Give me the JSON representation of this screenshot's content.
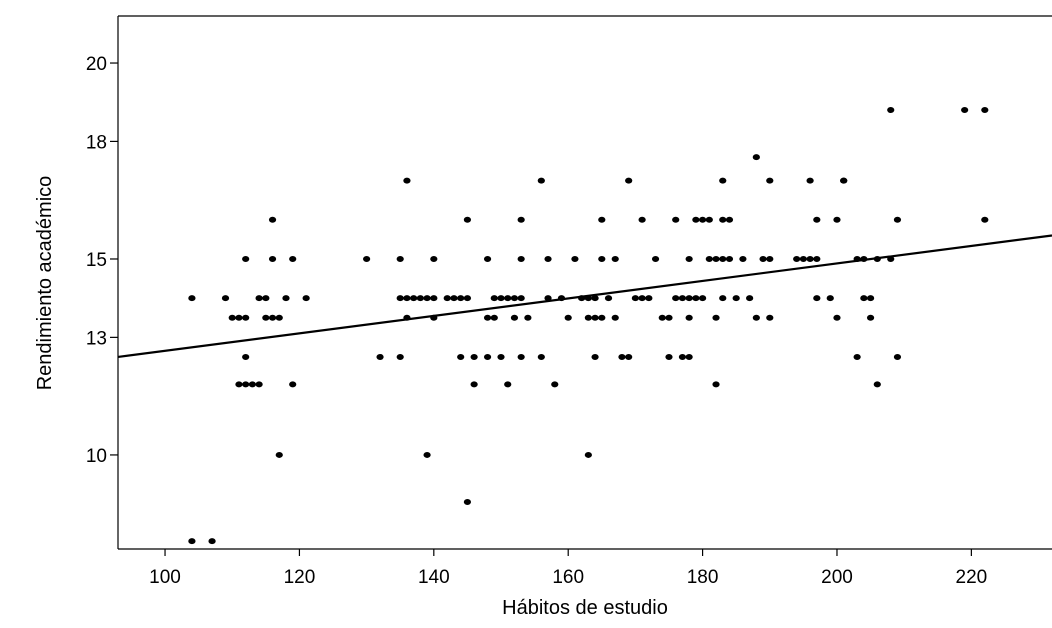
{
  "chart_data": {
    "type": "scatter",
    "title": "",
    "xlabel": "Hábitos de estudio",
    "ylabel": "Rendimiento académico",
    "xlim": [
      93,
      232
    ],
    "ylim": [
      7.6,
      21.2
    ],
    "grid": false,
    "legend": "none",
    "xticks": [
      100,
      120,
      140,
      160,
      180,
      200,
      220
    ],
    "yticks": [
      10,
      13,
      15,
      18,
      20
    ],
    "point_color": "#000000",
    "fit_line": {
      "x": [
        93,
        232
      ],
      "y": [
        12.5,
        15.6
      ],
      "color": "#000000"
    },
    "points": [
      [
        104,
        7.8
      ],
      [
        107,
        7.8
      ],
      [
        104,
        14
      ],
      [
        109,
        14
      ],
      [
        110,
        13.5
      ],
      [
        111,
        13.5
      ],
      [
        111,
        11.8
      ],
      [
        112,
        11.8
      ],
      [
        113,
        11.8
      ],
      [
        112,
        15
      ],
      [
        112,
        13.5
      ],
      [
        112,
        12.5
      ],
      [
        114,
        14
      ],
      [
        114,
        11.8
      ],
      [
        115,
        14
      ],
      [
        115,
        13.5
      ],
      [
        116,
        13.5
      ],
      [
        117,
        13.5
      ],
      [
        116,
        16
      ],
      [
        116,
        15
      ],
      [
        117,
        10
      ],
      [
        118,
        14
      ],
      [
        119,
        15
      ],
      [
        119,
        11.8
      ],
      [
        121,
        14
      ],
      [
        130,
        15
      ],
      [
        132,
        12.5
      ],
      [
        135,
        15
      ],
      [
        135,
        12.5
      ],
      [
        135,
        14
      ],
      [
        136,
        14
      ],
      [
        137,
        14
      ],
      [
        136,
        17
      ],
      [
        136,
        13.5
      ],
      [
        138,
        14
      ],
      [
        139,
        14
      ],
      [
        139,
        10
      ],
      [
        140,
        15
      ],
      [
        140,
        14
      ],
      [
        140,
        13.5
      ],
      [
        142,
        14
      ],
      [
        143,
        14
      ],
      [
        144,
        14
      ],
      [
        145,
        14
      ],
      [
        144,
        12.5
      ],
      [
        145,
        16
      ],
      [
        145,
        8.8
      ],
      [
        146,
        12.5
      ],
      [
        146,
        11.8
      ],
      [
        148,
        15
      ],
      [
        148,
        13.5
      ],
      [
        148,
        12.5
      ],
      [
        149,
        14
      ],
      [
        149,
        13.5
      ],
      [
        150,
        14
      ],
      [
        150,
        12.5
      ],
      [
        151,
        14
      ],
      [
        151,
        11.8
      ],
      [
        152,
        14
      ],
      [
        152,
        13.5
      ],
      [
        153,
        14
      ],
      [
        153,
        16
      ],
      [
        153,
        15
      ],
      [
        153,
        12.5
      ],
      [
        154,
        13.5
      ],
      [
        156,
        17
      ],
      [
        156,
        12.5
      ],
      [
        157,
        15
      ],
      [
        157,
        14
      ],
      [
        158,
        11.8
      ],
      [
        159,
        14
      ],
      [
        160,
        13.5
      ],
      [
        161,
        15
      ],
      [
        162,
        14
      ],
      [
        163,
        14
      ],
      [
        163,
        13.5
      ],
      [
        163,
        10
      ],
      [
        164,
        14
      ],
      [
        164,
        13.5
      ],
      [
        164,
        12.5
      ],
      [
        165,
        16
      ],
      [
        165,
        15
      ],
      [
        165,
        13.5
      ],
      [
        166,
        14
      ],
      [
        167,
        15
      ],
      [
        167,
        13.5
      ],
      [
        168,
        12.5
      ],
      [
        169,
        12.5
      ],
      [
        169,
        17
      ],
      [
        170,
        14
      ],
      [
        171,
        16
      ],
      [
        171,
        14
      ],
      [
        172,
        14
      ],
      [
        173,
        15
      ],
      [
        174,
        13.5
      ],
      [
        175,
        13.5
      ],
      [
        175,
        12.5
      ],
      [
        176,
        16
      ],
      [
        176,
        14
      ],
      [
        177,
        14
      ],
      [
        177,
        12.5
      ],
      [
        178,
        15
      ],
      [
        178,
        14
      ],
      [
        178,
        13.5
      ],
      [
        178,
        12.5
      ],
      [
        179,
        14
      ],
      [
        179,
        16
      ],
      [
        180,
        16
      ],
      [
        180,
        14
      ],
      [
        181,
        16
      ],
      [
        181,
        15
      ],
      [
        182,
        15
      ],
      [
        182,
        13.5
      ],
      [
        182,
        11.8
      ],
      [
        183,
        15
      ],
      [
        183,
        17
      ],
      [
        183,
        16
      ],
      [
        183,
        14
      ],
      [
        184,
        16
      ],
      [
        184,
        15
      ],
      [
        185,
        14
      ],
      [
        186,
        15
      ],
      [
        187,
        14
      ],
      [
        188,
        13.5
      ],
      [
        188,
        17.6
      ],
      [
        189,
        15
      ],
      [
        190,
        15
      ],
      [
        190,
        17
      ],
      [
        190,
        13.5
      ],
      [
        194,
        15
      ],
      [
        195,
        15
      ],
      [
        196,
        15
      ],
      [
        196,
        17
      ],
      [
        197,
        15
      ],
      [
        197,
        16
      ],
      [
        197,
        14
      ],
      [
        199,
        14
      ],
      [
        200,
        16
      ],
      [
        200,
        13.5
      ],
      [
        201,
        17
      ],
      [
        201,
        17
      ],
      [
        203,
        15
      ],
      [
        203,
        12.5
      ],
      [
        204,
        15
      ],
      [
        204,
        14
      ],
      [
        205,
        14
      ],
      [
        205,
        13.5
      ],
      [
        206,
        15
      ],
      [
        206,
        11.8
      ],
      [
        208,
        15
      ],
      [
        208,
        18.8
      ],
      [
        209,
        16
      ],
      [
        209,
        12.5
      ],
      [
        219,
        18.8
      ],
      [
        222,
        18.8
      ],
      [
        222,
        16
      ]
    ]
  }
}
